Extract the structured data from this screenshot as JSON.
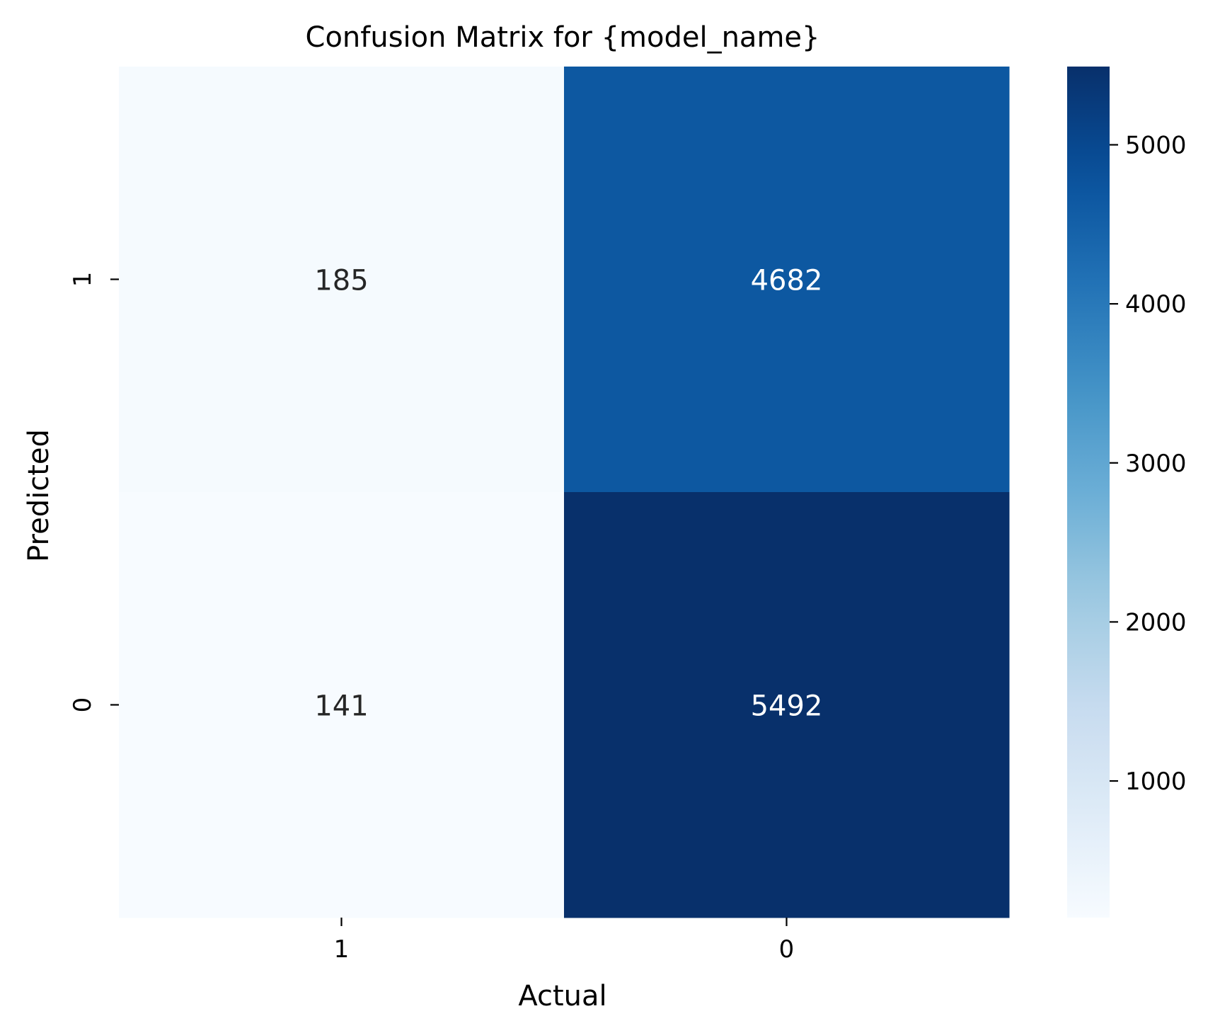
{
  "chart_data": {
    "type": "heatmap",
    "title": "Confusion Matrix for {model_name}",
    "xlabel": "Actual",
    "ylabel": "Predicted",
    "x_categories": [
      "1",
      "0"
    ],
    "y_categories": [
      "1",
      "0"
    ],
    "values": [
      [
        185,
        4682
      ],
      [
        141,
        5492
      ]
    ],
    "colormap": "Blues",
    "colorbar": {
      "min": 141,
      "max": 5492,
      "ticks": [
        1000,
        2000,
        3000,
        4000,
        5000
      ],
      "tick_labels": [
        "1000",
        "2000",
        "3000",
        "4000",
        "5000"
      ]
    },
    "grid": false,
    "annotation_colors": {
      "light": "#ffffff",
      "dark": "#262626"
    }
  }
}
